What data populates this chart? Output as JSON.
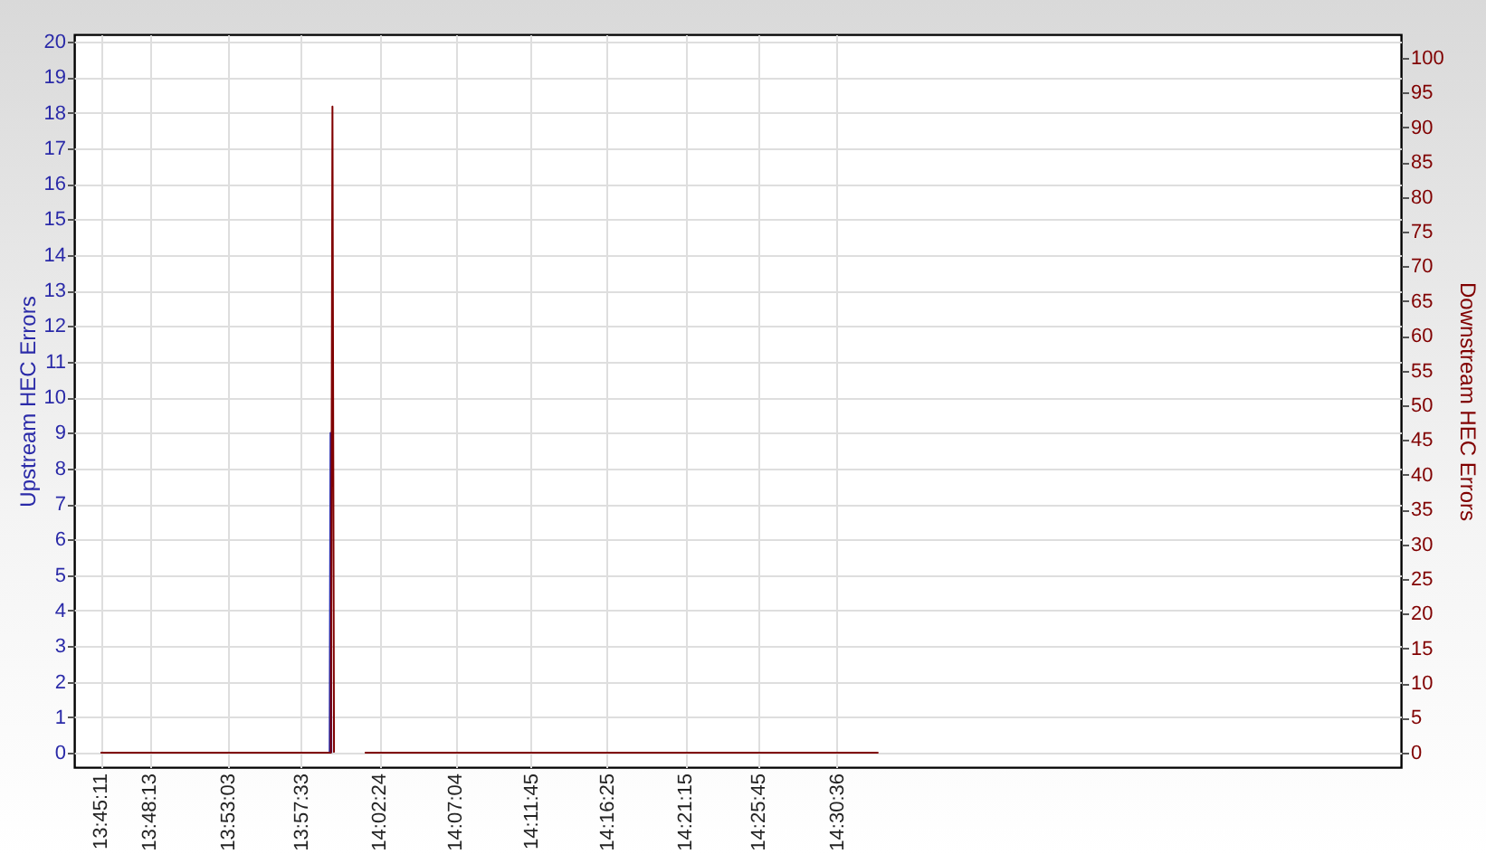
{
  "chart_data": {
    "type": "line",
    "ylabel": "Upstream HEC Errors",
    "y2label": "Downstream HEC Errors",
    "xlim": [
      13.726,
      15.09
    ],
    "xticks": [
      {
        "value": 13.7531,
        "label": "13:45:11"
      },
      {
        "value": 13.8036,
        "label": "13:48:13"
      },
      {
        "value": 13.8842,
        "label": "13:53:03"
      },
      {
        "value": 13.9592,
        "label": "13:57:33"
      },
      {
        "value": 14.04,
        "label": "14:02:24"
      },
      {
        "value": 14.1178,
        "label": "14:07:04"
      },
      {
        "value": 14.1958,
        "label": "14:11:45"
      },
      {
        "value": 14.2736,
        "label": "14:16:25"
      },
      {
        "value": 14.3542,
        "label": "14:21:15"
      },
      {
        "value": 14.4292,
        "label": "14:25:45"
      },
      {
        "value": 14.51,
        "label": "14:30:36"
      }
    ],
    "ylim": [
      -0.4,
      20.2
    ],
    "yticks": [
      0,
      1,
      2,
      3,
      4,
      5,
      6,
      7,
      8,
      9,
      10,
      11,
      12,
      13,
      14,
      15,
      16,
      17,
      18,
      19,
      20
    ],
    "y2lim": [
      -2.1,
      103.4
    ],
    "y2ticks": [
      0,
      5,
      10,
      15,
      20,
      25,
      30,
      35,
      40,
      45,
      50,
      55,
      60,
      65,
      70,
      75,
      80,
      85,
      90,
      95,
      100
    ],
    "grid": true,
    "series": [
      {
        "color": "#2a2aa8",
        "x": [
          13.9886,
          13.9895,
          13.9904
        ],
        "values": [
          0,
          9,
          0
        ]
      },
      {
        "axis": "y2",
        "color": "#800000",
        "x": [
          13.7531,
          13.9899,
          13.9915,
          13.9931,
          14.0,
          14.0248,
          14.5528
        ],
        "values": [
          0,
          0,
          93,
          0,
          null,
          0,
          0
        ]
      }
    ]
  }
}
